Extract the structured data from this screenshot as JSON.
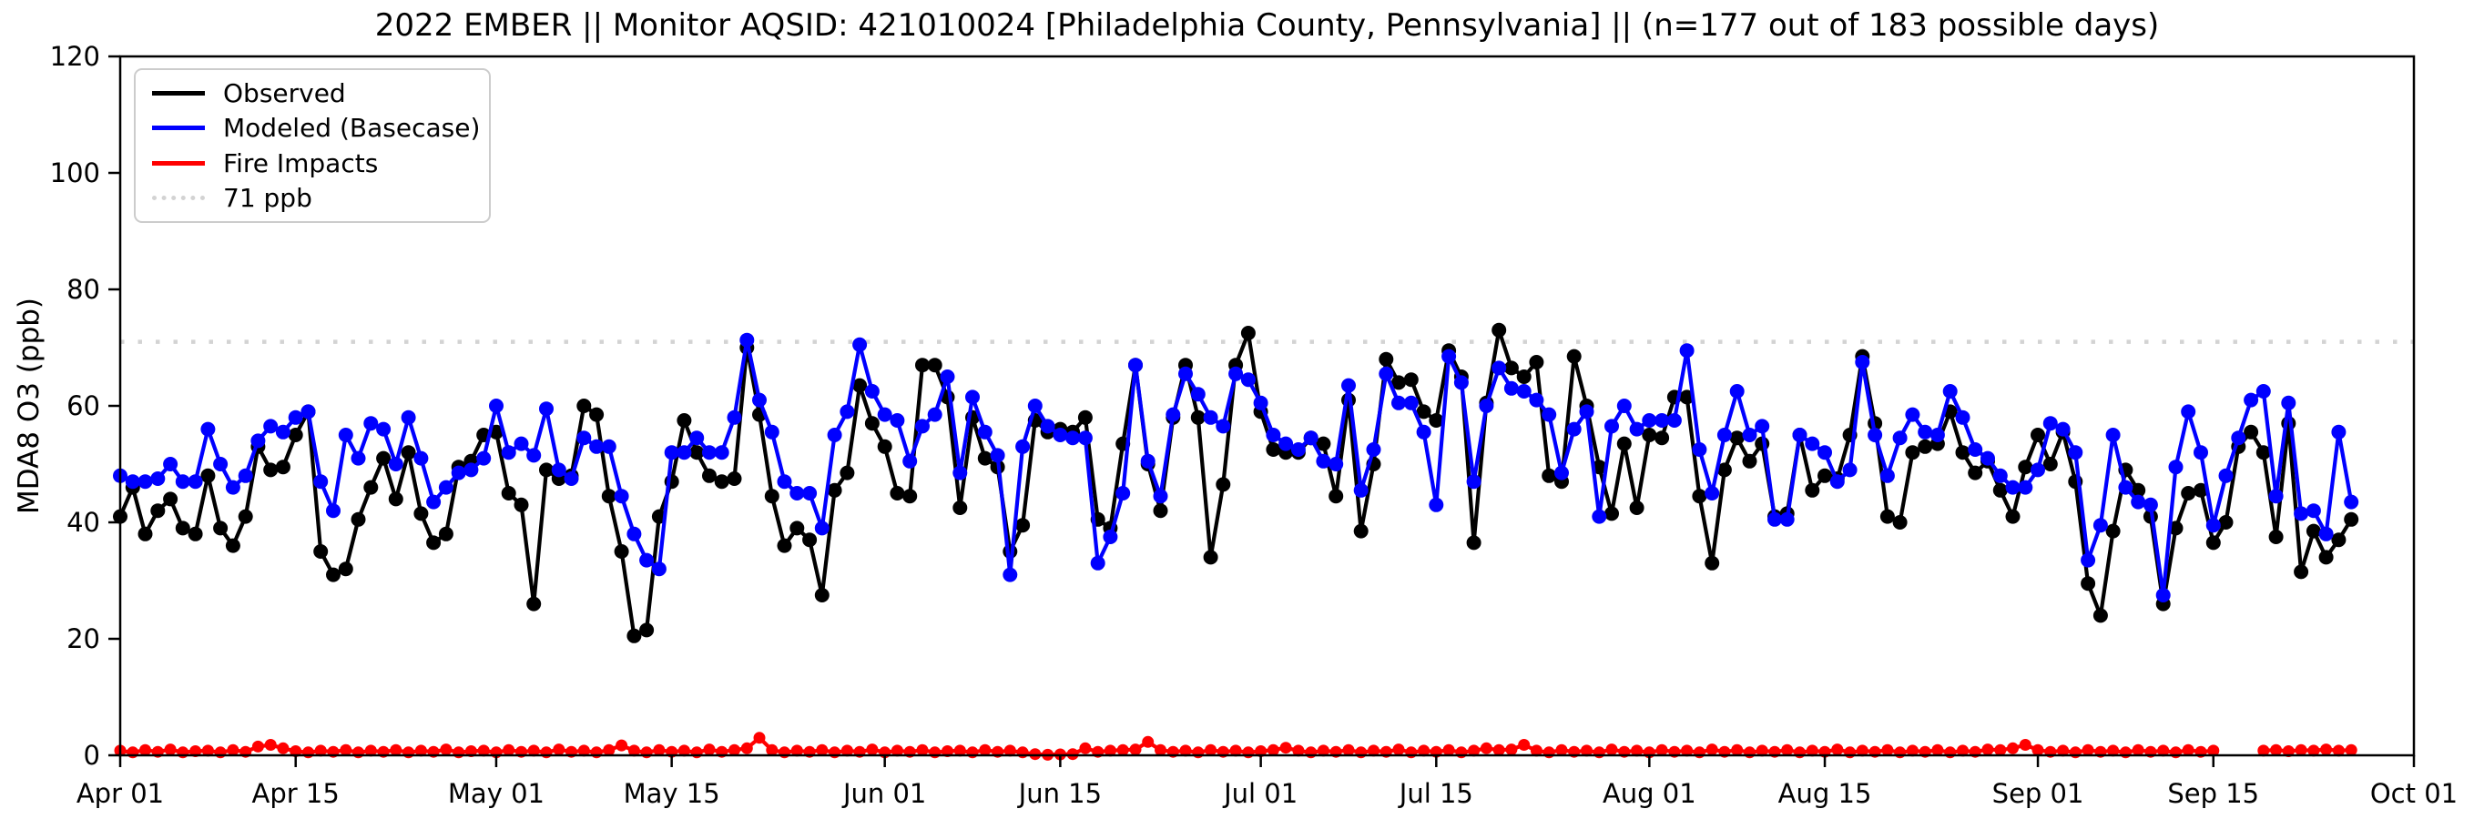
{
  "title": "2022 EMBER || Monitor AQSID: 421010024 [Philadelphia County, Pennsylvania] || (n=177 out of 183 possible days)",
  "axes": {
    "ylabel": "MDA8 O3 (ppb)",
    "ylim": [
      0,
      120
    ],
    "yticks": [
      0,
      20,
      40,
      60,
      80,
      100,
      120
    ],
    "x_total_days": 183,
    "xticks": [
      {
        "label": "Apr 01",
        "day": 0
      },
      {
        "label": "Apr 15",
        "day": 14
      },
      {
        "label": "May 01",
        "day": 30
      },
      {
        "label": "May 15",
        "day": 44
      },
      {
        "label": "Jun 01",
        "day": 61
      },
      {
        "label": "Jun 15",
        "day": 75
      },
      {
        "label": "Jul 01",
        "day": 91
      },
      {
        "label": "Jul 15",
        "day": 105
      },
      {
        "label": "Aug 01",
        "day": 122
      },
      {
        "label": "Aug 15",
        "day": 136
      },
      {
        "label": "Sep 01",
        "day": 153
      },
      {
        "label": "Sep 15",
        "day": 167
      },
      {
        "label": "Oct 01",
        "day": 183
      }
    ]
  },
  "legend": {
    "items": [
      {
        "label": "Observed",
        "color": "#000000",
        "style": "solid"
      },
      {
        "label": "Modeled (Basecase)",
        "color": "#0000ff",
        "style": "solid"
      },
      {
        "label": "Fire Impacts",
        "color": "#ff0000",
        "style": "solid"
      },
      {
        "label": "71 ppb",
        "color": "#d3d3d3",
        "style": "dotted"
      }
    ]
  },
  "chart_data": {
    "type": "line",
    "title": "2022 EMBER || Monitor AQSID: 421010024 [Philadelphia County, Pennsylvania] || (n=177 out of 183 possible days)",
    "xlabel": "",
    "ylabel": "MDA8 O3 (ppb)",
    "ylim": [
      0,
      120
    ],
    "grid": false,
    "legend_position": "upper left",
    "reference_line": {
      "value": 71,
      "label": "71 ppb",
      "color": "#d3d3d3",
      "style": "dotted"
    },
    "x_unit": "days since Apr 01 2022 (index 0 = Apr 01, axis ends Oct 01 = day 183)",
    "series": [
      {
        "name": "Observed",
        "color": "#000000",
        "marker": "circle",
        "values": [
          41,
          46,
          38,
          42,
          44,
          39,
          38,
          48,
          39,
          36,
          41,
          53,
          49,
          49.5,
          55,
          59,
          35,
          31,
          32,
          40.5,
          46,
          51,
          44,
          52,
          41.5,
          36.5,
          38,
          49.5,
          50.5,
          55,
          55.5,
          45,
          43,
          26,
          49,
          47.5,
          48,
          60,
          58.5,
          44.5,
          35,
          20.5,
          21.5,
          41,
          47,
          57.5,
          52,
          48,
          47,
          47.5,
          70,
          58.5,
          44.5,
          36,
          39,
          37,
          27.5,
          45.5,
          48.5,
          63.5,
          57,
          53,
          45,
          44.5,
          67,
          67,
          61.5,
          42.5,
          58,
          51,
          49.5,
          35,
          39.5,
          57.5,
          55.5,
          56,
          55.5,
          58,
          40.5,
          39,
          53.5,
          67,
          50,
          42,
          58,
          67,
          58,
          34,
          46.5,
          67,
          72.5,
          59,
          52.5,
          52,
          52,
          54.5,
          53.5,
          44.5,
          61,
          38.5,
          50,
          68,
          64,
          64.5,
          59,
          57.5,
          69.5,
          65,
          36.5,
          60.5,
          73,
          66.5,
          65,
          67.5,
          48,
          47,
          68.5,
          60,
          49.5,
          41.5,
          53.5,
          42.5,
          55,
          54.5,
          61.5,
          61.5,
          44.5,
          33,
          49,
          54.5,
          50.5,
          53.5,
          41,
          41.5,
          55,
          45.5,
          48,
          47.5,
          55,
          68.5,
          57,
          41,
          40,
          52,
          53,
          53.5,
          59,
          52,
          48.5,
          50.5,
          45.5,
          41,
          49.5,
          55,
          50,
          55.5,
          47,
          29.5,
          24,
          38.5,
          49,
          45.5,
          41,
          26,
          39,
          45,
          45.5,
          36.5,
          40,
          53,
          55.5,
          52,
          37.5,
          57,
          31.5,
          38.5,
          34,
          37,
          40.5
        ]
      },
      {
        "name": "Modeled (Basecase)",
        "color": "#0000ff",
        "marker": "circle",
        "values": [
          48,
          47,
          47,
          47.5,
          50,
          47,
          47,
          56,
          50,
          46,
          48,
          54,
          56.5,
          55.5,
          58,
          59,
          47,
          42,
          55,
          51,
          57,
          56,
          50,
          58,
          51,
          43.5,
          46,
          48.5,
          49,
          51,
          60,
          52,
          53.5,
          51.5,
          59.5,
          49,
          47.5,
          54.5,
          53,
          53,
          44.5,
          38,
          33.5,
          32,
          52,
          52,
          54.5,
          52,
          52,
          58,
          71.3,
          61,
          55.5,
          47,
          45,
          45,
          39,
          55,
          59,
          70.5,
          62.5,
          58.5,
          57.5,
          50.5,
          56.5,
          58.5,
          65,
          48.5,
          61.5,
          55.5,
          51.5,
          31,
          53,
          60,
          56.5,
          55,
          54.5,
          54.5,
          33,
          37.5,
          45,
          67,
          50.5,
          44.5,
          58.5,
          65.5,
          62,
          58,
          56.5,
          65.5,
          64.5,
          60.5,
          55,
          53.5,
          52.5,
          54.5,
          50.5,
          50,
          63.5,
          45.5,
          52.5,
          65.5,
          60.5,
          60.5,
          55.5,
          43,
          68.5,
          64,
          47,
          60,
          66.5,
          63,
          62.5,
          61,
          58.5,
          48.5,
          56,
          59,
          41,
          56.5,
          60,
          56,
          57.5,
          57.5,
          57.5,
          69.5,
          52.5,
          45,
          55,
          62.5,
          55,
          56.5,
          40.5,
          40.5,
          55,
          53.5,
          52,
          47,
          49,
          67.5,
          55,
          48,
          54.5,
          58.5,
          55.5,
          55,
          62.5,
          58,
          52.5,
          51,
          48,
          46,
          46,
          49,
          57,
          56,
          52,
          33.5,
          39.5,
          55,
          46,
          43.5,
          43,
          27.5,
          49.5,
          59,
          52,
          39.5,
          48,
          54.5,
          61,
          62.5,
          44.5,
          60.5,
          41.5,
          42,
          38,
          55.5,
          43.5
        ]
      },
      {
        "name": "Fire Impacts",
        "color": "#ff0000",
        "marker": "circle",
        "values": [
          0.8,
          0.5,
          0.9,
          0.6,
          1.0,
          0.5,
          0.7,
          0.8,
          0.5,
          0.9,
          0.6,
          1.5,
          1.8,
          1.2,
          0.7,
          0.5,
          0.8,
          0.6,
          0.9,
          0.5,
          0.8,
          0.6,
          0.9,
          0.5,
          0.8,
          0.6,
          1.0,
          0.5,
          0.7,
          0.8,
          0.5,
          0.9,
          0.6,
          0.8,
          0.5,
          1.0,
          0.6,
          0.8,
          0.5,
          0.9,
          1.7,
          0.8,
          0.5,
          0.9,
          0.6,
          0.8,
          0.5,
          1.0,
          0.6,
          0.9,
          1.2,
          3.0,
          0.9,
          0.5,
          0.8,
          0.6,
          0.9,
          0.5,
          0.8,
          0.6,
          1.0,
          0.5,
          0.8,
          0.6,
          0.9,
          0.5,
          0.7,
          0.8,
          0.5,
          0.9,
          0.6,
          0.8,
          0.5,
          0.2,
          0.1,
          0.15,
          0.2,
          1.2,
          0.6,
          0.8,
          0.9,
          1.0,
          2.3,
          0.9,
          0.6,
          0.8,
          0.5,
          0.9,
          0.6,
          0.8,
          0.5,
          0.7,
          0.9,
          1.3,
          0.8,
          0.5,
          0.8,
          0.6,
          0.9,
          0.5,
          0.8,
          0.6,
          1.0,
          0.5,
          0.8,
          0.6,
          0.9,
          0.5,
          0.8,
          1.2,
          0.9,
          1.0,
          1.8,
          0.8,
          0.5,
          0.9,
          0.6,
          0.8,
          0.5,
          1.0,
          0.6,
          0.8,
          0.5,
          0.9,
          0.6,
          0.8,
          0.5,
          1.0,
          0.6,
          0.9,
          0.5,
          0.8,
          0.6,
          0.9,
          0.5,
          0.8,
          0.6,
          1.0,
          0.5,
          0.8,
          0.6,
          0.9,
          0.5,
          0.8,
          0.6,
          0.9,
          0.5,
          0.8,
          0.6,
          1.0,
          0.9,
          1.2,
          1.8,
          0.9,
          0.6,
          0.8,
          0.5,
          0.9,
          0.6,
          0.8,
          0.5,
          0.9,
          0.6,
          0.8,
          0.5,
          0.9,
          0.6,
          0.8,
          null,
          null,
          null,
          0.8,
          0.9,
          0.7,
          0.9,
          0.8,
          1.0,
          0.8,
          0.9
        ]
      }
    ]
  }
}
